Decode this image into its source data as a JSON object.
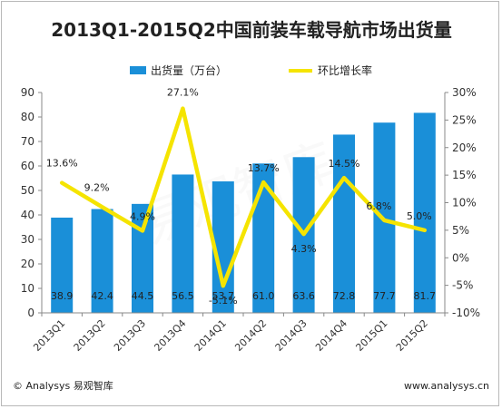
{
  "chart_data": {
    "type": "bar",
    "title": "2013Q1-2015Q2中国前装车载导航市场出货量",
    "categories": [
      "2013Q1",
      "2013Q2",
      "2013Q3",
      "2013Q4",
      "2014Q1",
      "2014Q2",
      "2014Q3",
      "2014Q4",
      "2015Q1",
      "2015Q2"
    ],
    "series": [
      {
        "name": "出货量（万台）",
        "type": "bar",
        "axis": "left",
        "color": "#1a8fd8",
        "values": [
          38.9,
          42.4,
          44.5,
          56.5,
          53.7,
          61.0,
          63.6,
          72.8,
          77.7,
          81.7
        ],
        "labels": [
          "38.9",
          "42.4",
          "44.5",
          "56.5",
          "53.7",
          "61.0",
          "63.6",
          "72.8",
          "77.7",
          "81.7"
        ]
      },
      {
        "name": "环比增长率",
        "type": "line",
        "axis": "right",
        "color": "#f5e400",
        "values": [
          13.6,
          9.2,
          4.9,
          27.1,
          -5.1,
          13.7,
          4.3,
          14.5,
          6.8,
          5.0
        ],
        "labels": [
          "13.6%",
          "9.2%",
          "4.9%",
          "27.1%",
          "-5.1%",
          "13.7%",
          "4.3%",
          "14.5%",
          "6.8%",
          "5.0%"
        ]
      }
    ],
    "ylim_left": [
      0,
      90
    ],
    "ylim_right": [
      -10,
      30
    ],
    "yticks_left": [
      "0",
      "10",
      "20",
      "30",
      "40",
      "50",
      "60",
      "70",
      "80",
      "90"
    ],
    "yticks_right": [
      "-10%",
      "-5%",
      "0%",
      "5%",
      "10%",
      "15%",
      "20%",
      "25%",
      "30%"
    ],
    "legend_position": "top",
    "grid": false
  },
  "footer": {
    "left": "© Analysys 易观智库",
    "right": "www.analysys.cn"
  },
  "watermark": "易观智库"
}
